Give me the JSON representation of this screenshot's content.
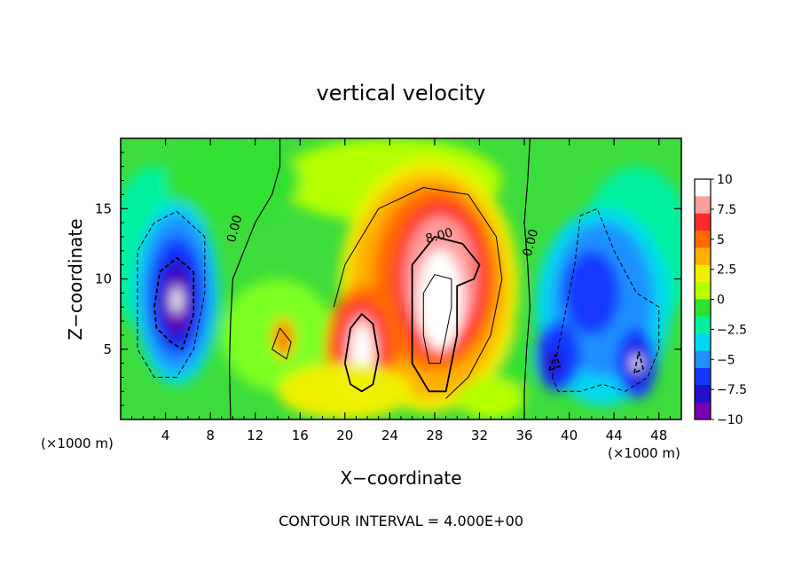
{
  "chart_data": {
    "type": "heatmap",
    "title": "vertical velocity",
    "xlabel": "X−coordinate",
    "ylabel": "Z−coordinate",
    "x_unit_left": "(×1000 m)",
    "x_unit_right": "(×1000 m)",
    "footer": "CONTOUR INTERVAL = 4.000E+00",
    "xlim": [
      0,
      50
    ],
    "ylim": [
      0,
      20
    ],
    "x_ticks": [
      4,
      8,
      12,
      16,
      20,
      24,
      28,
      32,
      36,
      40,
      44,
      48
    ],
    "x_tick_labels": [
      "4",
      "8",
      "12",
      "16",
      "20",
      "24",
      "28",
      "32",
      "36",
      "40",
      "44",
      "48"
    ],
    "y_ticks": [
      5,
      10,
      15
    ],
    "y_tick_labels": [
      "5",
      "10",
      "15"
    ],
    "colorbar": {
      "min": -10,
      "max": 10,
      "ticks": [
        10,
        7.5,
        5,
        2.5,
        0,
        -2.5,
        -5,
        -7.5,
        -10
      ],
      "tick_labels": [
        "10",
        "7.5",
        "5",
        "2.5",
        "0",
        "−2.5",
        "−5",
        "−7.5",
        "−10"
      ],
      "colors": [
        "#ffffff",
        "#ff9c9c",
        "#ff2a2a",
        "#ff6a00",
        "#ffb000",
        "#f0f000",
        "#b4ff00",
        "#30e030",
        "#00f0a0",
        "#00d8f0",
        "#1e90ff",
        "#1438ff",
        "#2010c8",
        "#7800b0"
      ]
    },
    "contour_labels": [
      {
        "text": "0.00",
        "x": 10.5,
        "z": 13.5
      },
      {
        "text": "8.00",
        "x": 28.5,
        "z": 12.8
      },
      {
        "text": "0.00",
        "x": 36.9,
        "z": 12.5
      }
    ],
    "features": [
      {
        "type": "updraft",
        "x": 21.5,
        "z": 4.8,
        "peak": 14
      },
      {
        "type": "updraft",
        "x": 28.5,
        "z": 8.5,
        "peak": 18
      },
      {
        "type": "downdraft",
        "x": 5,
        "z": 8.5,
        "peak": -14
      },
      {
        "type": "downdraft",
        "x": 43,
        "z": 8,
        "peak": -6
      },
      {
        "type": "downdraft",
        "x": 46,
        "z": 4,
        "peak": -10
      }
    ]
  }
}
